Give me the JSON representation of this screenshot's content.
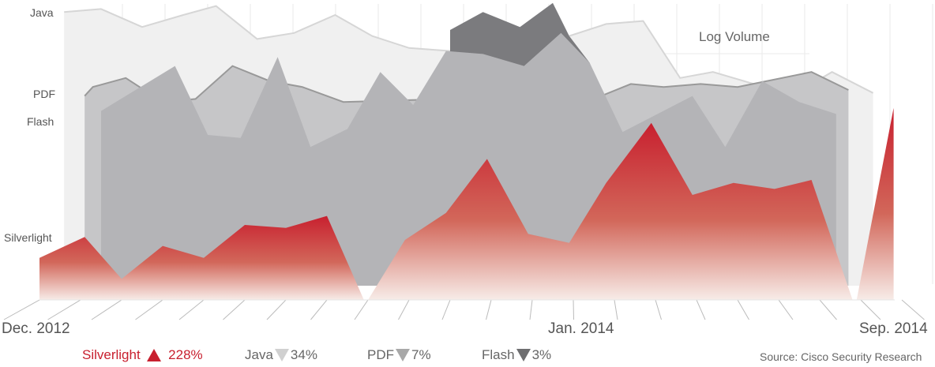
{
  "chart_data": {
    "type": "area",
    "title": "Log Volume",
    "xlabel": "",
    "ylabel": "",
    "x_ticks": [
      "Dec. 2012",
      "Jan. 2014",
      "Sep. 2014"
    ],
    "y_category_labels": [
      "Java",
      "PDF",
      "Flash",
      "Silverlight"
    ],
    "ylim": [
      0,
      100
    ],
    "xlim_months": [
      0,
      21
    ],
    "series": [
      {
        "name": "Java",
        "color": "#f0f0f0",
        "stroke": "#d6d6d6",
        "points": [
          [
            0.6,
            96
          ],
          [
            1.5,
            97
          ],
          [
            2.5,
            91
          ],
          [
            3.5,
            95
          ],
          [
            4.3,
            98
          ],
          [
            5.3,
            87
          ],
          [
            6.2,
            89
          ],
          [
            7.2,
            95
          ],
          [
            8.1,
            88
          ],
          [
            9.0,
            84
          ],
          [
            10,
            83
          ],
          [
            12.9,
            88
          ],
          [
            13.8,
            92
          ],
          [
            14.7,
            93
          ],
          [
            15.6,
            74
          ],
          [
            16.4,
            76
          ],
          [
            17.4,
            72
          ],
          [
            18.3,
            68
          ],
          [
            19.3,
            76
          ],
          [
            20.3,
            69
          ]
        ]
      },
      {
        "name": "Flash peak",
        "color": "#7b7b7e",
        "points": [
          [
            10,
            84
          ],
          [
            10,
            90
          ],
          [
            10.8,
            96
          ],
          [
            11.7,
            91
          ],
          [
            12.5,
            99
          ],
          [
            12.9,
            88
          ],
          [
            13.4,
            79
          ]
        ]
      },
      {
        "name": "PDF",
        "color": "#c6c6c8",
        "stroke": "#999999",
        "points": [
          [
            1.1,
            68
          ],
          [
            1.3,
            71
          ],
          [
            2.1,
            74
          ],
          [
            3.0,
            66
          ],
          [
            3.8,
            67
          ],
          [
            4.7,
            78
          ],
          [
            5.6,
            73
          ],
          [
            6.4,
            71
          ],
          [
            7.4,
            66
          ],
          [
            10,
            67
          ],
          [
            10.9,
            65
          ],
          [
            11.7,
            66
          ],
          [
            13.5,
            67
          ],
          [
            14.4,
            72
          ],
          [
            15.2,
            71
          ],
          [
            16.1,
            72
          ],
          [
            17,
            71
          ],
          [
            18.8,
            76
          ],
          [
            19.7,
            70
          ]
        ]
      },
      {
        "name": "Flash",
        "color": "#b4b4b7",
        "points": [
          [
            1.5,
            63
          ],
          [
            3.3,
            78
          ],
          [
            4.1,
            55
          ],
          [
            4.9,
            54
          ],
          [
            5.8,
            81
          ],
          [
            6.6,
            51
          ],
          [
            7.5,
            57
          ],
          [
            8.3,
            76
          ],
          [
            9.1,
            65
          ],
          [
            9.9,
            83
          ],
          [
            10.8,
            82
          ],
          [
            11.8,
            78
          ],
          [
            12.7,
            89
          ],
          [
            13.4,
            79
          ],
          [
            14.2,
            56
          ],
          [
            15.9,
            68
          ],
          [
            16.7,
            51
          ],
          [
            17.6,
            73
          ],
          [
            18.5,
            66
          ],
          [
            19.4,
            62
          ]
        ]
      },
      {
        "name": "Silverlight",
        "color": "#c8202f",
        "segments": [
          [
            [
              0,
              14
            ],
            [
              1.1,
              21
            ],
            [
              2,
              7
            ],
            [
              3,
              18
            ],
            [
              4,
              14
            ],
            [
              5,
              25
            ],
            [
              6,
              24
            ],
            [
              7,
              28
            ],
            [
              7.9,
              0
            ]
          ],
          [
            [
              8,
              0
            ],
            [
              8.9,
              20
            ],
            [
              9.9,
              29
            ],
            [
              10.9,
              47
            ],
            [
              11.9,
              22
            ],
            [
              12.9,
              19
            ],
            [
              13.8,
              39
            ],
            [
              14.9,
              59
            ],
            [
              15.9,
              35
            ],
            [
              16.9,
              39
            ],
            [
              17.9,
              37
            ],
            [
              18.8,
              40
            ],
            [
              19.8,
              0
            ]
          ],
          [
            [
              19.9,
              0
            ],
            [
              20.8,
              64
            ],
            [
              20.8,
              0
            ]
          ]
        ]
      }
    ],
    "legend": [
      {
        "name": "Silverlight",
        "direction": "up",
        "change": "228%",
        "color": "#c8202f"
      },
      {
        "name": "Java",
        "direction": "down",
        "change": "34%",
        "color": "#d0d0d0"
      },
      {
        "name": "PDF",
        "direction": "down",
        "change": "7%",
        "color": "#a8a8a8"
      },
      {
        "name": "Flash",
        "direction": "down",
        "change": "3%",
        "color": "#6e6e70"
      }
    ],
    "source": "Source: Cisco Security Research"
  }
}
